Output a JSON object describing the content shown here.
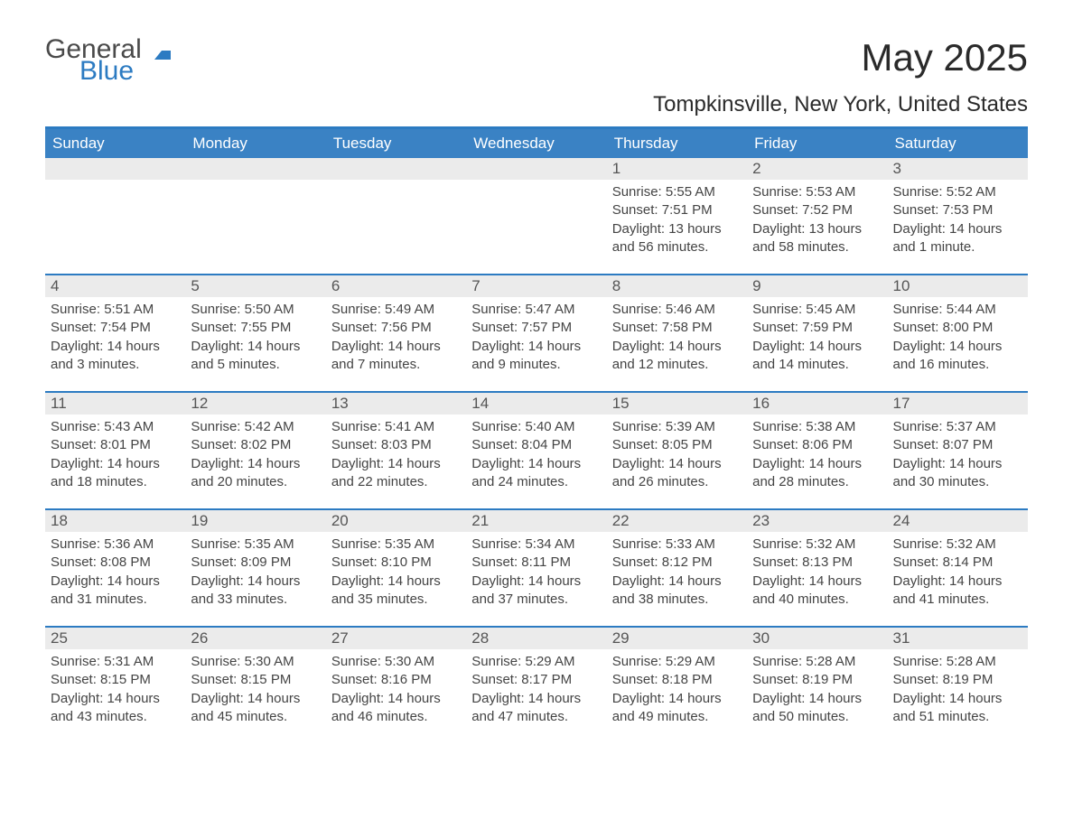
{
  "brand": {
    "general": "General",
    "blue": "Blue",
    "flag_color": "#2c7bc2"
  },
  "title": "May 2025",
  "location": "Tompkinsville, New York, United States",
  "colors": {
    "header_bg": "#3a82c4",
    "border": "#2c7bc2",
    "daynum_bg": "#ebebeb",
    "text": "#333333",
    "white": "#ffffff"
  },
  "weekdays": [
    "Sunday",
    "Monday",
    "Tuesday",
    "Wednesday",
    "Thursday",
    "Friday",
    "Saturday"
  ],
  "weeks": [
    [
      null,
      null,
      null,
      null,
      {
        "n": "1",
        "sunrise": "5:55 AM",
        "sunset": "7:51 PM",
        "daylight": "13 hours and 56 minutes."
      },
      {
        "n": "2",
        "sunrise": "5:53 AM",
        "sunset": "7:52 PM",
        "daylight": "13 hours and 58 minutes."
      },
      {
        "n": "3",
        "sunrise": "5:52 AM",
        "sunset": "7:53 PM",
        "daylight": "14 hours and 1 minute."
      }
    ],
    [
      {
        "n": "4",
        "sunrise": "5:51 AM",
        "sunset": "7:54 PM",
        "daylight": "14 hours and 3 minutes."
      },
      {
        "n": "5",
        "sunrise": "5:50 AM",
        "sunset": "7:55 PM",
        "daylight": "14 hours and 5 minutes."
      },
      {
        "n": "6",
        "sunrise": "5:49 AM",
        "sunset": "7:56 PM",
        "daylight": "14 hours and 7 minutes."
      },
      {
        "n": "7",
        "sunrise": "5:47 AM",
        "sunset": "7:57 PM",
        "daylight": "14 hours and 9 minutes."
      },
      {
        "n": "8",
        "sunrise": "5:46 AM",
        "sunset": "7:58 PM",
        "daylight": "14 hours and 12 minutes."
      },
      {
        "n": "9",
        "sunrise": "5:45 AM",
        "sunset": "7:59 PM",
        "daylight": "14 hours and 14 minutes."
      },
      {
        "n": "10",
        "sunrise": "5:44 AM",
        "sunset": "8:00 PM",
        "daylight": "14 hours and 16 minutes."
      }
    ],
    [
      {
        "n": "11",
        "sunrise": "5:43 AM",
        "sunset": "8:01 PM",
        "daylight": "14 hours and 18 minutes."
      },
      {
        "n": "12",
        "sunrise": "5:42 AM",
        "sunset": "8:02 PM",
        "daylight": "14 hours and 20 minutes."
      },
      {
        "n": "13",
        "sunrise": "5:41 AM",
        "sunset": "8:03 PM",
        "daylight": "14 hours and 22 minutes."
      },
      {
        "n": "14",
        "sunrise": "5:40 AM",
        "sunset": "8:04 PM",
        "daylight": "14 hours and 24 minutes."
      },
      {
        "n": "15",
        "sunrise": "5:39 AM",
        "sunset": "8:05 PM",
        "daylight": "14 hours and 26 minutes."
      },
      {
        "n": "16",
        "sunrise": "5:38 AM",
        "sunset": "8:06 PM",
        "daylight": "14 hours and 28 minutes."
      },
      {
        "n": "17",
        "sunrise": "5:37 AM",
        "sunset": "8:07 PM",
        "daylight": "14 hours and 30 minutes."
      }
    ],
    [
      {
        "n": "18",
        "sunrise": "5:36 AM",
        "sunset": "8:08 PM",
        "daylight": "14 hours and 31 minutes."
      },
      {
        "n": "19",
        "sunrise": "5:35 AM",
        "sunset": "8:09 PM",
        "daylight": "14 hours and 33 minutes."
      },
      {
        "n": "20",
        "sunrise": "5:35 AM",
        "sunset": "8:10 PM",
        "daylight": "14 hours and 35 minutes."
      },
      {
        "n": "21",
        "sunrise": "5:34 AM",
        "sunset": "8:11 PM",
        "daylight": "14 hours and 37 minutes."
      },
      {
        "n": "22",
        "sunrise": "5:33 AM",
        "sunset": "8:12 PM",
        "daylight": "14 hours and 38 minutes."
      },
      {
        "n": "23",
        "sunrise": "5:32 AM",
        "sunset": "8:13 PM",
        "daylight": "14 hours and 40 minutes."
      },
      {
        "n": "24",
        "sunrise": "5:32 AM",
        "sunset": "8:14 PM",
        "daylight": "14 hours and 41 minutes."
      }
    ],
    [
      {
        "n": "25",
        "sunrise": "5:31 AM",
        "sunset": "8:15 PM",
        "daylight": "14 hours and 43 minutes."
      },
      {
        "n": "26",
        "sunrise": "5:30 AM",
        "sunset": "8:15 PM",
        "daylight": "14 hours and 45 minutes."
      },
      {
        "n": "27",
        "sunrise": "5:30 AM",
        "sunset": "8:16 PM",
        "daylight": "14 hours and 46 minutes."
      },
      {
        "n": "28",
        "sunrise": "5:29 AM",
        "sunset": "8:17 PM",
        "daylight": "14 hours and 47 minutes."
      },
      {
        "n": "29",
        "sunrise": "5:29 AM",
        "sunset": "8:18 PM",
        "daylight": "14 hours and 49 minutes."
      },
      {
        "n": "30",
        "sunrise": "5:28 AM",
        "sunset": "8:19 PM",
        "daylight": "14 hours and 50 minutes."
      },
      {
        "n": "31",
        "sunrise": "5:28 AM",
        "sunset": "8:19 PM",
        "daylight": "14 hours and 51 minutes."
      }
    ]
  ],
  "labels": {
    "sunrise": "Sunrise: ",
    "sunset": "Sunset: ",
    "daylight": "Daylight: "
  }
}
